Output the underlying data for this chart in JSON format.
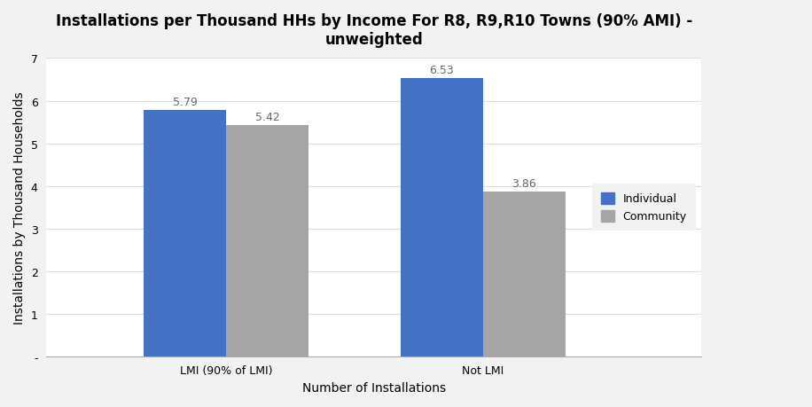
{
  "title": "Installations per Thousand HHs by Income For R8, R9,R10 Towns (90% AMI) -\nunweighted",
  "xlabel": "Number of Installations",
  "ylabel": "Installations by Thousand Households",
  "categories": [
    "LMI (90% of LMI)",
    "Not LMI"
  ],
  "series": [
    {
      "label": "Individual",
      "values": [
        5.79,
        6.53
      ],
      "color": "#4472C4"
    },
    {
      "label": "Community",
      "values": [
        5.42,
        3.86
      ],
      "color": "#A5A5A5"
    }
  ],
  "ylim": [
    0,
    7
  ],
  "yticks": [
    0,
    1,
    2,
    3,
    4,
    5,
    6,
    7
  ],
  "ytick_labels": [
    "-",
    "1",
    "2",
    "3",
    "4",
    "5",
    "6",
    "7"
  ],
  "bar_width": 0.32,
  "background_color": "#FFFFFF",
  "plot_bg_color": "#FFFFFF",
  "outer_bg_color": "#F2F2F2",
  "grid_color": "#DDDDDD",
  "title_fontsize": 12,
  "axis_label_fontsize": 10,
  "tick_fontsize": 9,
  "annotation_fontsize": 9,
  "legend_fontsize": 9,
  "xlim": [
    -0.7,
    1.85
  ]
}
